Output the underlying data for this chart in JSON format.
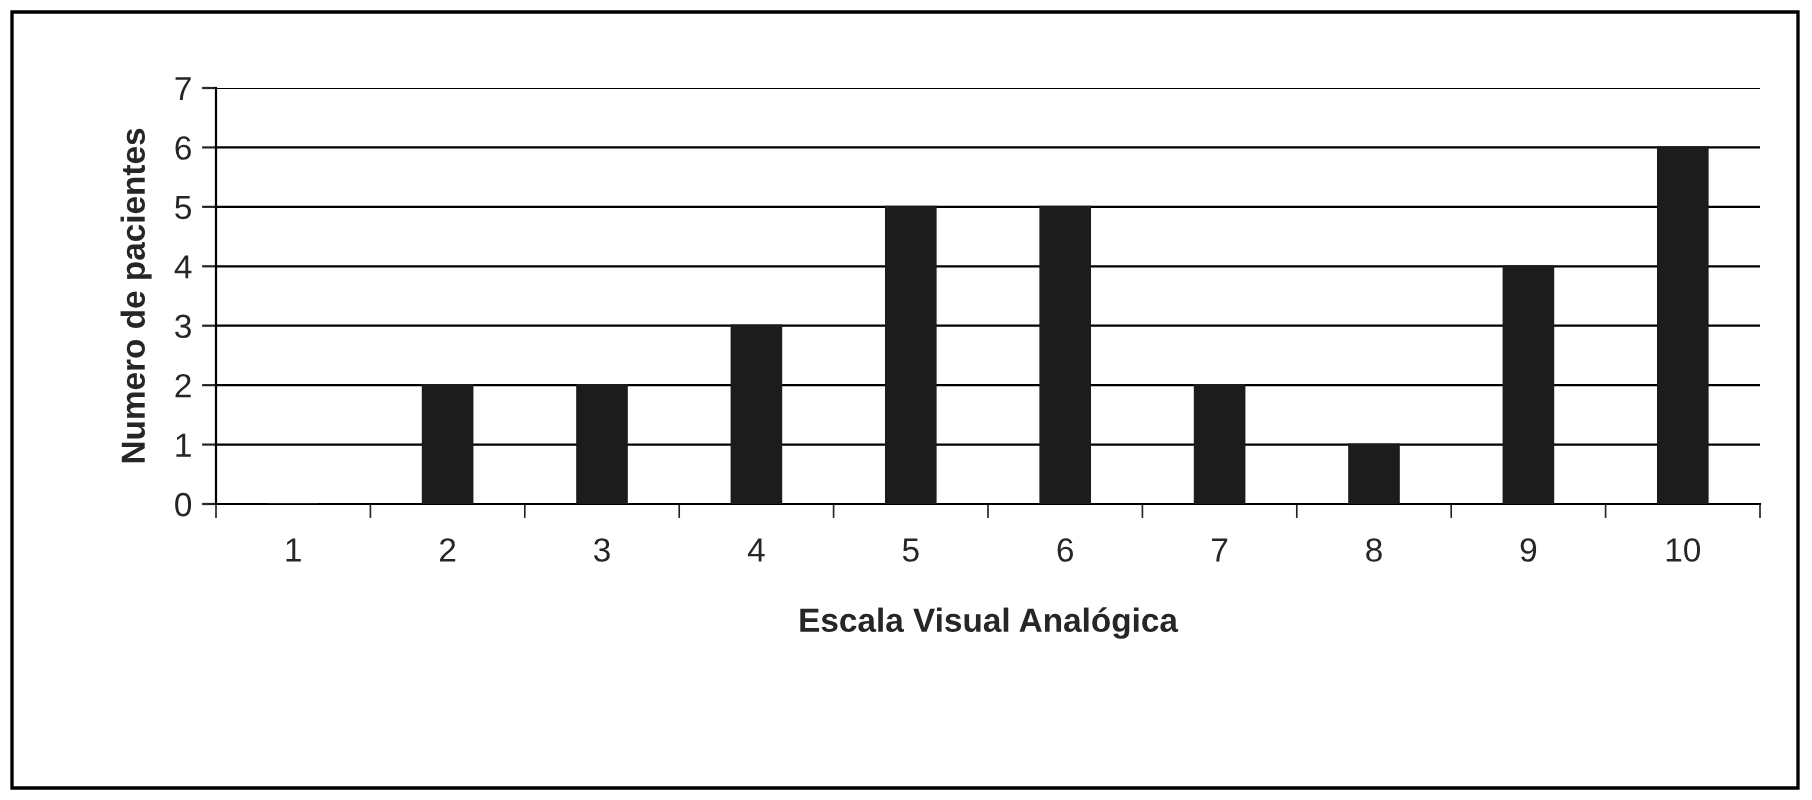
{
  "chart_data": {
    "type": "bar",
    "xlabel": "Escala Visual Analógica",
    "ylabel": "Numero de pacientes",
    "categories": [
      "1",
      "2",
      "3",
      "4",
      "5",
      "6",
      "7",
      "8",
      "9",
      "10"
    ],
    "values": [
      0,
      2,
      2,
      3,
      5,
      5,
      2,
      1,
      4,
      6
    ],
    "color": "#1c1c1c",
    "ylim": [
      0,
      7
    ],
    "yticks": [
      0,
      1,
      2,
      3,
      4,
      5,
      6,
      7
    ],
    "grid": "y",
    "legend": false
  }
}
